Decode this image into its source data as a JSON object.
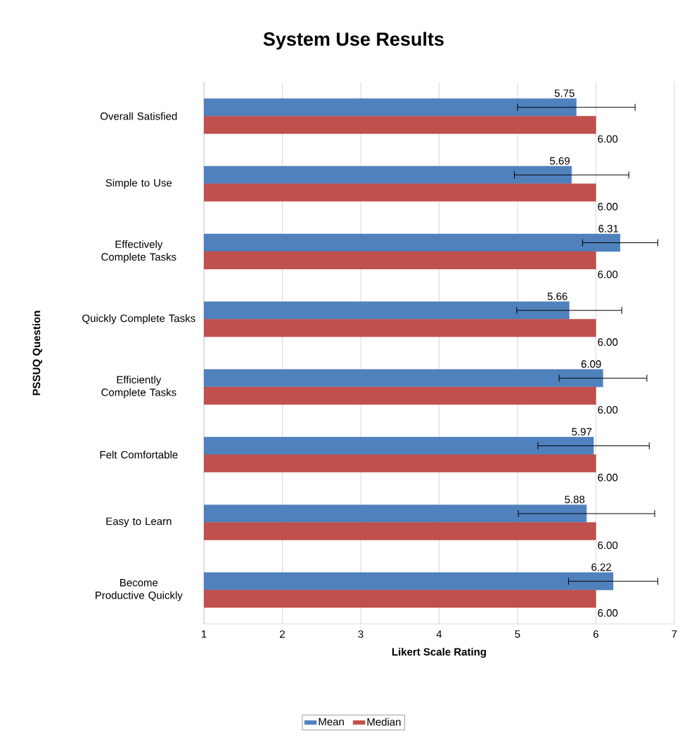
{
  "chart_data": {
    "type": "bar",
    "orientation": "horizontal",
    "title": "System Use Results",
    "xlabel": "Likert Scale Rating",
    "ylabel": "PSSUQ Question",
    "categories": [
      "Overall Satisfied",
      "Simple to Use",
      "Effectively Complete Tasks",
      "Quickly Complete Tasks",
      "Efficiently Complete Tasks",
      "Felt Comfortable",
      "Easy to Learn",
      "Become Productive Quickly"
    ],
    "series": [
      {
        "name": "Mean",
        "color": "#4f81bd",
        "values": [
          5.75,
          5.69,
          6.31,
          5.66,
          6.09,
          5.97,
          5.88,
          6.22
        ],
        "errors": [
          0.75,
          0.73,
          0.48,
          0.67,
          0.56,
          0.71,
          0.87,
          0.57
        ],
        "value_labels": [
          "5.75",
          "5.69",
          "6.31",
          "5.66",
          "6.09",
          "5.97",
          "5.88",
          "6.22"
        ]
      },
      {
        "name": "Median",
        "color": "#c0504d",
        "values": [
          6,
          6,
          6,
          6,
          6,
          6,
          6,
          6
        ],
        "value_labels": [
          "6.00",
          "6.00",
          "6.00",
          "6.00",
          "6.00",
          "6.00",
          "6.00",
          "6.00"
        ]
      }
    ],
    "xlim": [
      1,
      7
    ],
    "xticks": [
      1,
      2,
      3,
      4,
      5,
      6,
      7
    ],
    "grid": "x",
    "legend": "bottom"
  }
}
